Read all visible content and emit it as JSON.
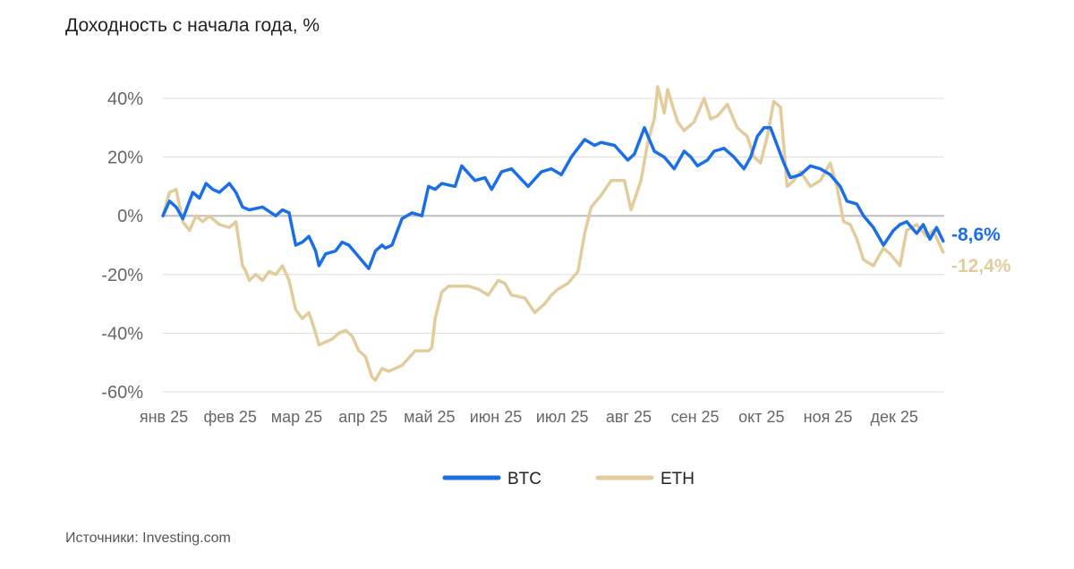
{
  "title": "Доходность с начала года, %",
  "source": "Источники: Investing.com",
  "chart_data": {
    "type": "line",
    "title": "Доходность с начала года, %",
    "xlabel": "",
    "ylabel": "",
    "ylim": [
      -60,
      40
    ],
    "yticks": [
      40,
      20,
      0,
      -20,
      -40,
      -60
    ],
    "ytick_labels": [
      "40%",
      "20%",
      "0%",
      "-20%",
      "-40%",
      "-60%"
    ],
    "xlim": [
      0,
      11.8
    ],
    "xticks": [
      0,
      1,
      2,
      3,
      4,
      5,
      6,
      7,
      8,
      9,
      10,
      11
    ],
    "xtick_labels": [
      "янв 25",
      "фев 25",
      "мар 25",
      "апр 25",
      "май 25",
      "июн 25",
      "июл 25",
      "авг 25",
      "сен 25",
      "окт 25",
      "ноя 25",
      "дек 25"
    ],
    "grid": "horizontal",
    "legend": "bottom-center",
    "series": [
      {
        "name": "BTC",
        "color": "#1a6ee6",
        "end_label": "-8,6%",
        "x": [
          0,
          0.1,
          0.2,
          0.3,
          0.45,
          0.55,
          0.65,
          0.75,
          0.85,
          1.0,
          1.1,
          1.2,
          1.3,
          1.5,
          1.7,
          1.8,
          1.9,
          2.0,
          2.1,
          2.2,
          2.3,
          2.35,
          2.45,
          2.6,
          2.7,
          2.8,
          2.95,
          3.1,
          3.2,
          3.3,
          3.35,
          3.45,
          3.6,
          3.75,
          3.9,
          4.0,
          4.1,
          4.2,
          4.4,
          4.5,
          4.7,
          4.85,
          4.95,
          5.1,
          5.25,
          5.5,
          5.7,
          5.85,
          6.0,
          6.15,
          6.35,
          6.5,
          6.6,
          6.8,
          7.0,
          7.1,
          7.25,
          7.4,
          7.55,
          7.7,
          7.85,
          7.95,
          8.05,
          8.2,
          8.3,
          8.45,
          8.6,
          8.75,
          8.85,
          8.95,
          9.05,
          9.15,
          9.25,
          9.35,
          9.45,
          9.6,
          9.75,
          9.9,
          10.05,
          10.2,
          10.3,
          10.45,
          10.55,
          10.7,
          10.85,
          11.0,
          11.1,
          11.2,
          11.35,
          11.45,
          11.55,
          11.65,
          11.75
        ],
        "values": [
          0,
          5,
          3,
          -1,
          8,
          6,
          11,
          9,
          8,
          11,
          8,
          3,
          2,
          3,
          0,
          2,
          1,
          -10,
          -9,
          -7,
          -12,
          -17,
          -13,
          -12,
          -9,
          -10,
          -14,
          -18,
          -12,
          -10,
          -11,
          -10,
          -1,
          1,
          0,
          10,
          9,
          11,
          10,
          17,
          12,
          13,
          9,
          15,
          16,
          10,
          15,
          16,
          14,
          20,
          26,
          24,
          25,
          24,
          19,
          21,
          30,
          22,
          20,
          16,
          22,
          20,
          17,
          19,
          22,
          23,
          20,
          16,
          20,
          27,
          30,
          30,
          24,
          18,
          13,
          14,
          17,
          16,
          14,
          10,
          5,
          4,
          0,
          -4,
          -10,
          -5,
          -3,
          -2,
          -6,
          -3,
          -8,
          -4,
          -8.6
        ]
      },
      {
        "name": "ETH",
        "color": "#e2cc9c",
        "end_label": "-12,4%",
        "x": [
          0,
          0.1,
          0.2,
          0.3,
          0.4,
          0.5,
          0.6,
          0.7,
          0.85,
          1.0,
          1.1,
          1.2,
          1.25,
          1.3,
          1.4,
          1.5,
          1.6,
          1.7,
          1.8,
          1.9,
          2.0,
          2.1,
          2.2,
          2.3,
          2.35,
          2.45,
          2.55,
          2.65,
          2.75,
          2.85,
          2.95,
          3.05,
          3.15,
          3.2,
          3.3,
          3.4,
          3.5,
          3.6,
          3.8,
          4.0,
          4.05,
          4.1,
          4.2,
          4.3,
          4.45,
          4.6,
          4.75,
          4.9,
          5.05,
          5.15,
          5.25,
          5.45,
          5.6,
          5.75,
          5.85,
          5.95,
          6.1,
          6.25,
          6.35,
          6.45,
          6.6,
          6.75,
          6.95,
          7.05,
          7.2,
          7.3,
          7.4,
          7.45,
          7.55,
          7.6,
          7.75,
          7.85,
          8.0,
          8.15,
          8.25,
          8.35,
          8.5,
          8.65,
          8.8,
          8.9,
          9.0,
          9.1,
          9.2,
          9.3,
          9.4,
          9.5,
          9.6,
          9.75,
          9.9,
          10.05,
          10.15,
          10.25,
          10.35,
          10.45,
          10.55,
          10.7,
          10.85,
          10.95,
          11.1,
          11.2,
          11.35,
          11.5,
          11.6,
          11.75
        ],
        "values": [
          0,
          8,
          9,
          -2,
          -5,
          0,
          -2,
          0,
          -3,
          -4,
          -2,
          -17,
          -19,
          -22,
          -20,
          -22,
          -19,
          -20,
          -17,
          -22,
          -32,
          -35,
          -33,
          -40,
          -44,
          -43,
          -42,
          -40,
          -39,
          -41,
          -46,
          -48,
          -55,
          -56,
          -52,
          -53,
          -52,
          -51,
          -46,
          -46,
          -45,
          -35,
          -26,
          -24,
          -24,
          -24,
          -25,
          -27,
          -22,
          -23,
          -27,
          -28,
          -33,
          -30,
          -27,
          -25,
          -23,
          -19,
          -6,
          3,
          7,
          12,
          12,
          2,
          12,
          25,
          33,
          44,
          35,
          43,
          32,
          29,
          32,
          40,
          33,
          34,
          38,
          30,
          27,
          20,
          18,
          27,
          39,
          37,
          10,
          12,
          15,
          10,
          12,
          18,
          10,
          -2,
          -3,
          -8,
          -15,
          -17,
          -11,
          -13,
          -17,
          -5,
          -3,
          -7,
          -5,
          -12.4
        ]
      }
    ]
  }
}
